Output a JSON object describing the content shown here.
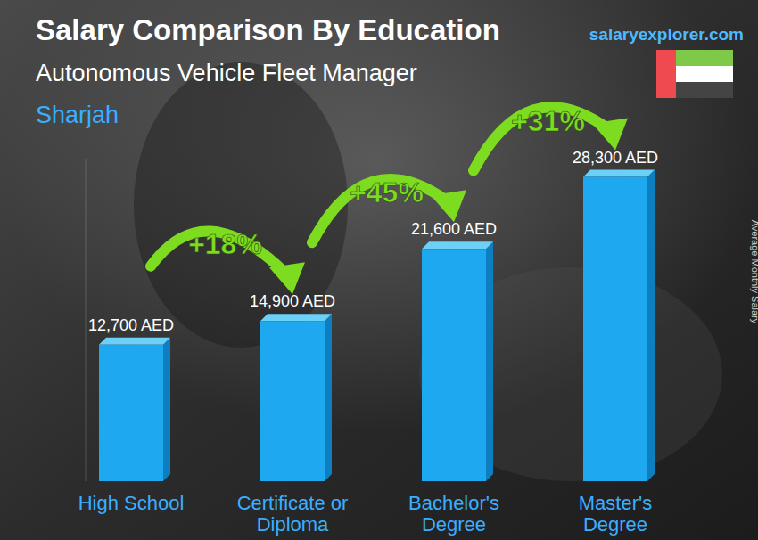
{
  "chart_data": {
    "type": "bar",
    "title": "Salary Comparison By Education",
    "subtitle": "Autonomous Vehicle Fleet Manager",
    "location": "Sharjah",
    "source": "salaryexplorer.com",
    "y_label": "Average Monthly Salary",
    "categories": [
      "High School",
      "Certificate or Diploma",
      "Bachelor's Degree",
      "Master's Degree"
    ],
    "values": [
      12700,
      14900,
      21600,
      28300
    ],
    "value_labels": [
      "12,700 AED",
      "14,900 AED",
      "21,600 AED",
      "28,300 AED"
    ],
    "annotations": [
      "+18%",
      "+45%",
      "+31%"
    ],
    "color": "#1ea8ef",
    "ylim": [
      0,
      30000
    ],
    "tick_labels": false,
    "data_labels": true,
    "grid": false
  }
}
